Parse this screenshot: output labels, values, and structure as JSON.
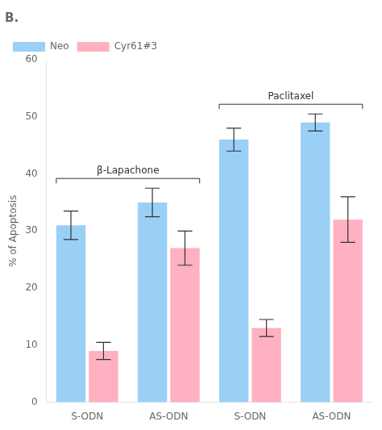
{
  "chart_data": {
    "type": "bar",
    "title": "B.",
    "ylabel": "% of Apoptosis",
    "categories": [
      "S-ODN",
      "AS-ODN",
      "S-ODN",
      "AS-ODN"
    ],
    "series": [
      {
        "name": "Neo",
        "values": [
          31,
          35,
          46,
          49
        ],
        "errors": [
          2.5,
          2.5,
          2,
          1.5
        ]
      },
      {
        "name": "Cyr61#3",
        "values": [
          9,
          27,
          13,
          32
        ],
        "errors": [
          1.5,
          3,
          1.5,
          4
        ]
      }
    ],
    "ylim": [
      0,
      60
    ],
    "yticks": [
      0,
      10,
      20,
      30,
      40,
      50,
      60
    ],
    "grid": false,
    "legend": "upper left",
    "annotations": [
      {
        "text": "β-Lapachone",
        "start": 0,
        "end": 1
      },
      {
        "text": "Paclitaxel",
        "start": 2,
        "end": 3
      }
    ]
  }
}
